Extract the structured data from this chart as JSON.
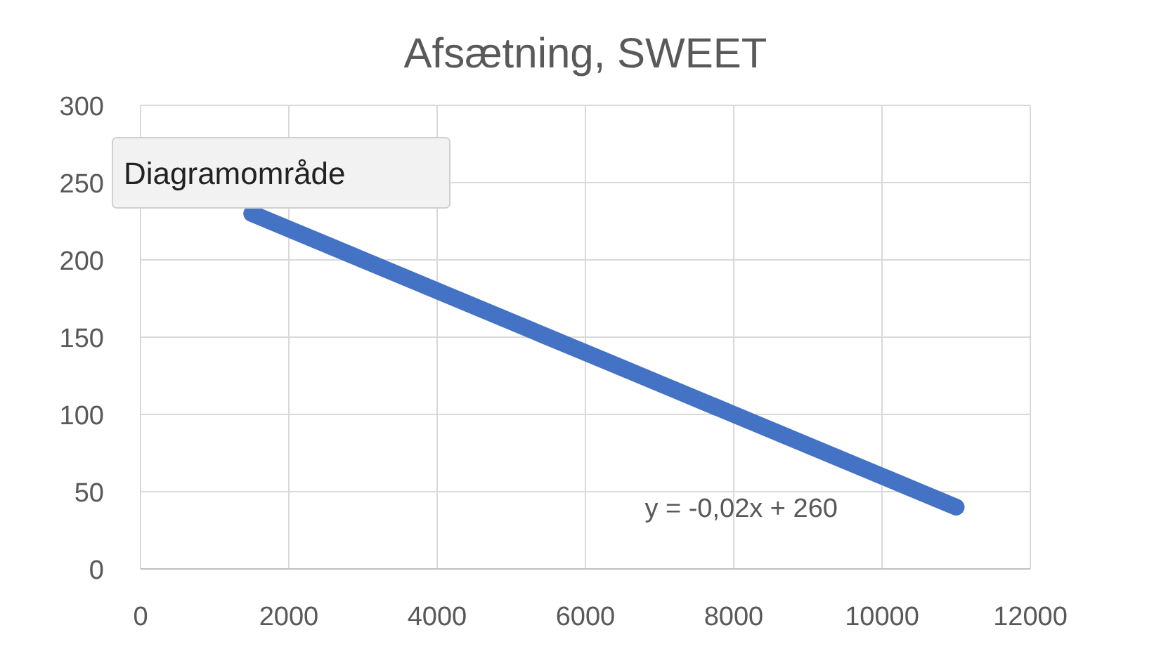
{
  "chart_data": {
    "type": "line",
    "title": "Afsætning, SWEET",
    "annotations": [
      "Diagramområde",
      "y = -0,02x + 260"
    ],
    "x": [
      1500,
      2000,
      3000,
      4000,
      5000,
      6000,
      7000,
      8000,
      9000,
      10000,
      11000
    ],
    "series": [
      {
        "color": "#4472c4",
        "values": [
          230,
          220,
          200,
          180,
          160,
          140,
          120,
          100,
          80,
          60,
          40
        ]
      }
    ],
    "xlim": [
      0,
      12000
    ],
    "xticks": [
      0,
      2000,
      4000,
      6000,
      8000,
      10000,
      12000
    ],
    "ylim": [
      0,
      300
    ],
    "yticks": [
      0,
      50,
      100,
      150,
      200,
      250,
      300
    ],
    "grid": true,
    "line_style": "solid"
  }
}
